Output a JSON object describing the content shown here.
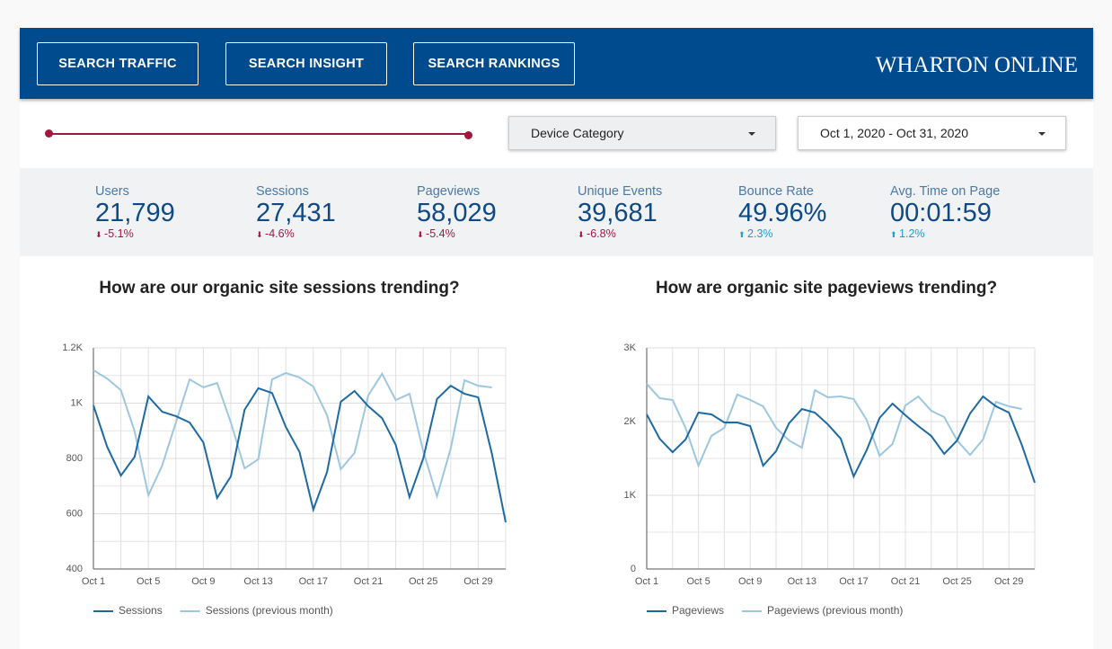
{
  "header": {
    "buttons": [
      "SEARCH TRAFFIC",
      "SEARCH INSIGHT",
      "SEARCH RANKINGS"
    ],
    "brand": "WHARTON ONLINE"
  },
  "filters": {
    "device": "Device Category",
    "date_range": "Oct 1, 2020 - Oct 31, 2020"
  },
  "scorecards": [
    {
      "label": "Users",
      "value": "21,799",
      "change": "-5.1%",
      "direction": "down"
    },
    {
      "label": "Sessions",
      "value": "27,431",
      "change": "-4.6%",
      "direction": "down"
    },
    {
      "label": "Pageviews",
      "value": "58,029",
      "change": "-5.4%",
      "direction": "down"
    },
    {
      "label": "Unique Events",
      "value": "39,681",
      "change": "-6.8%",
      "direction": "down"
    },
    {
      "label": "Bounce Rate",
      "value": "49.96%",
      "change": "2.3%",
      "direction": "up"
    },
    {
      "label": "Avg. Time on Page",
      "value": "00:01:59",
      "change": "1.2%",
      "direction": "up"
    }
  ],
  "chart_data": [
    {
      "type": "line",
      "title": "How are our organic site sessions trending?",
      "categories": [
        "Oct 1",
        null,
        null,
        null,
        "Oct 5",
        null,
        null,
        null,
        "Oct 9",
        null,
        null,
        null,
        "Oct 13",
        null,
        null,
        null,
        "Oct 17",
        null,
        null,
        null,
        "Oct 21",
        null,
        null,
        null,
        "Oct 25",
        null,
        null,
        null,
        "Oct 29",
        null,
        null
      ],
      "series": [
        {
          "name": "Sessions",
          "color": "#1d6aa3",
          "values": [
            992,
            842,
            738,
            806,
            1024,
            969,
            953,
            930,
            858,
            657,
            735,
            976,
            1054,
            1037,
            914,
            823,
            615,
            751,
            1005,
            1044,
            989,
            946,
            849,
            660,
            800,
            1015,
            1063,
            1034,
            1021,
            816,
            569
          ]
        },
        {
          "name": "Sessions (previous month)",
          "color": "#9dc6e0",
          "values": [
            1119,
            1089,
            1047,
            898,
            667,
            774,
            930,
            1086,
            1057,
            1073,
            930,
            764,
            797,
            1086,
            1109,
            1093,
            1060,
            956,
            761,
            820,
            1028,
            1106,
            1011,
            1034,
            826,
            663,
            836,
            1083,
            1063,
            1057,
            null
          ]
        }
      ],
      "ylim": [
        400,
        1200
      ],
      "yticks": [
        400,
        600,
        800,
        {
          "value": 1000,
          "label": "1K"
        },
        {
          "value": 1200,
          "label": "1.2K"
        }
      ],
      "grid": true,
      "legend": "bottom"
    },
    {
      "type": "line",
      "title": "How are organic site pageviews trending?",
      "categories": [
        "Oct 1",
        null,
        null,
        null,
        "Oct 5",
        null,
        null,
        null,
        "Oct 9",
        null,
        null,
        null,
        "Oct 13",
        null,
        null,
        null,
        "Oct 17",
        null,
        null,
        null,
        "Oct 21",
        null,
        null,
        null,
        "Oct 25",
        null,
        null,
        null,
        "Oct 29",
        null,
        null
      ],
      "series": [
        {
          "name": "Pageviews",
          "color": "#1d6aa3",
          "values": [
            2098,
            1768,
            1585,
            1756,
            2122,
            2098,
            1988,
            1988,
            1939,
            1402,
            1598,
            1976,
            2171,
            2122,
            1963,
            1768,
            1256,
            1610,
            2049,
            2244,
            2085,
            1939,
            1805,
            1561,
            1744,
            2110,
            2341,
            2207,
            2122,
            1683,
            1171
          ]
        },
        {
          "name": "Pageviews (previous month)",
          "color": "#9dc6e0",
          "values": [
            2512,
            2317,
            2293,
            1915,
            1402,
            1805,
            1915,
            2366,
            2293,
            2207,
            1915,
            1744,
            1646,
            2427,
            2329,
            2341,
            2305,
            2024,
            1537,
            1695,
            2220,
            2341,
            2146,
            2061,
            1744,
            1549,
            1756,
            2268,
            2207,
            2171,
            null
          ]
        }
      ],
      "ylim": [
        0,
        3000
      ],
      "yticks": [
        0,
        {
          "value": 1000,
          "label": "1K"
        },
        {
          "value": 2000,
          "label": "2K"
        },
        {
          "value": 3000,
          "label": "3K"
        }
      ],
      "grid": true,
      "legend": "bottom"
    }
  ]
}
